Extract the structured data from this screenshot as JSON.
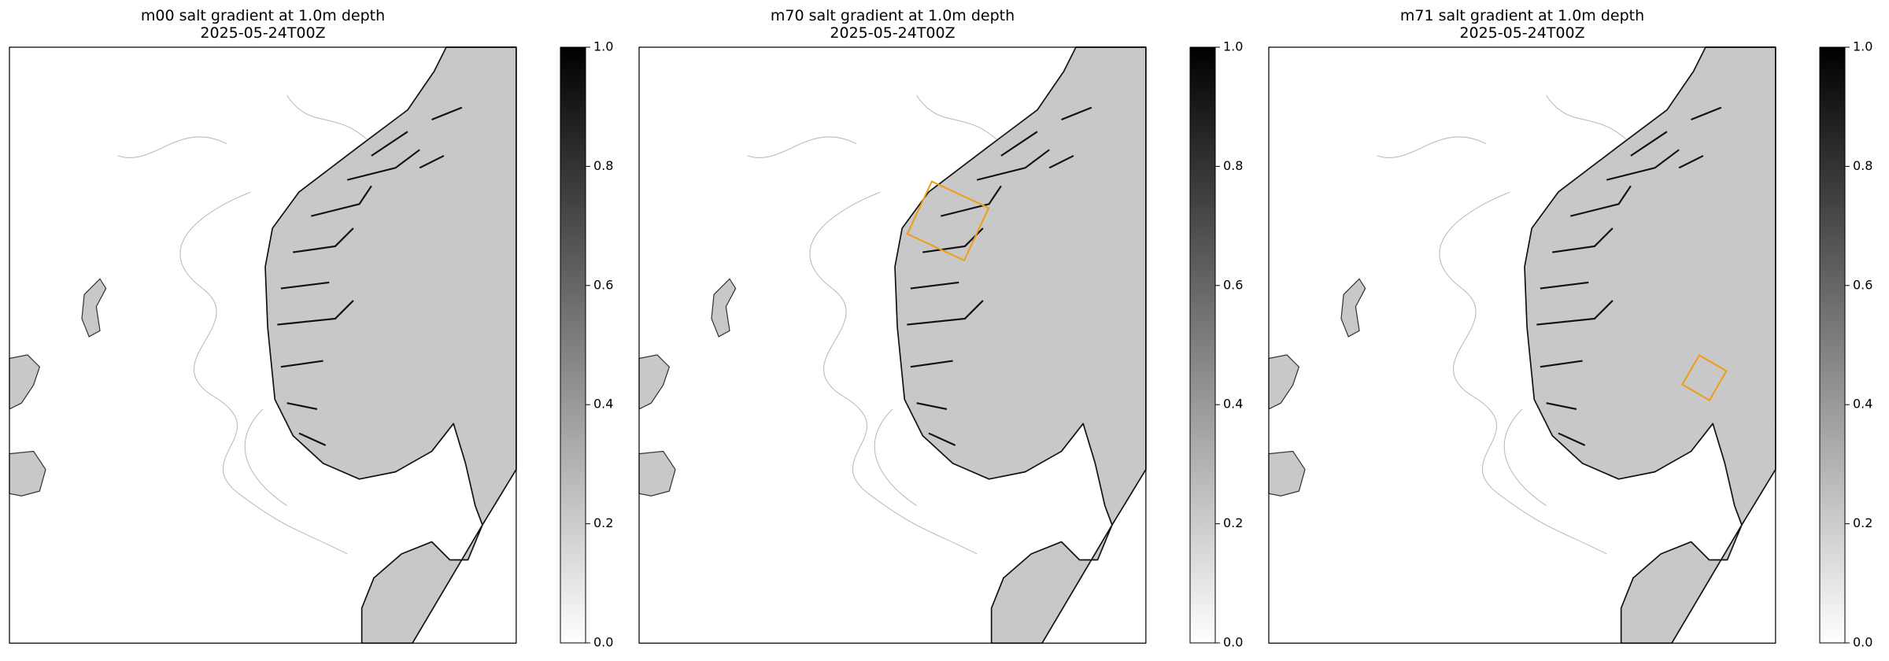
{
  "panels": [
    {
      "title": "m00 salt gradient at 1.0m depth",
      "subtitle": "2025-05-24T00Z"
    },
    {
      "title": "m70 salt gradient at 1.0m depth",
      "subtitle": "2025-05-24T00Z"
    },
    {
      "title": "m71 salt gradient at 1.0m depth",
      "subtitle": "2025-05-24T00Z"
    }
  ],
  "colorbar": {
    "lim": [
      0,
      1
    ],
    "ticks": [
      {
        "value": 0,
        "label": "0.0"
      },
      {
        "value": 0.2,
        "label": "0.2"
      },
      {
        "value": 0.4,
        "label": "0.4"
      },
      {
        "value": 0.6,
        "label": "0.6"
      },
      {
        "value": 0.8,
        "label": "0.8"
      },
      {
        "value": 1,
        "label": "1.0"
      }
    ]
  }
}
